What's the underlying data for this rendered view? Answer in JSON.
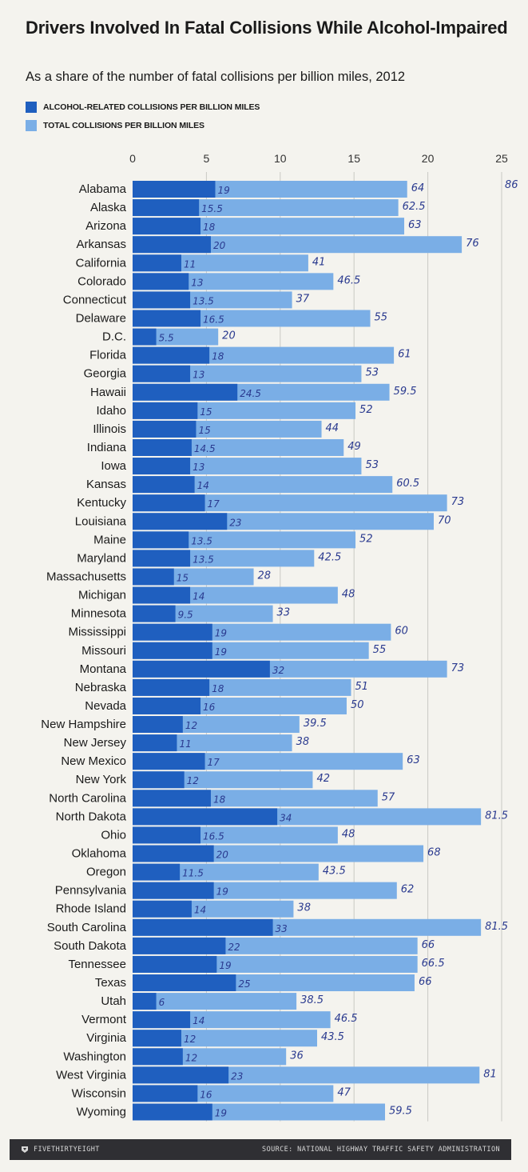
{
  "header": {
    "title": "Drivers Involved In Fatal Collisions While Alcohol-Impaired",
    "subtitle": "As a share of the number of fatal collisions per billion miles, 2012"
  },
  "legend": [
    {
      "label": "ALCOHOL-RELATED COLLISIONS PER BILLION MILES",
      "color": "#1f5fbf"
    },
    {
      "label": "TOTAL COLLISIONS PER BILLION MILES",
      "color": "#7aaee6"
    }
  ],
  "footer": {
    "brand": "FIVETHIRTYEIGHT",
    "source": "SOURCE: NATIONAL HIGHWAY TRAFFIC SAFETY ADMINISTRATION"
  },
  "chart_data": {
    "type": "bar",
    "orientation": "horizontal",
    "xlim": [
      0,
      25
    ],
    "xticks": [
      "0",
      "5",
      "10",
      "15",
      "20",
      "25"
    ],
    "grid": true,
    "categories": [
      "Alabama",
      "Alaska",
      "Arizona",
      "Arkansas",
      "California",
      "Colorado",
      "Connecticut",
      "Delaware",
      "D.C.",
      "Florida",
      "Georgia",
      "Hawaii",
      "Idaho",
      "Illinois",
      "Indiana",
      "Iowa",
      "Kansas",
      "Kentucky",
      "Louisiana",
      "Maine",
      "Maryland",
      "Massachusetts",
      "Michigan",
      "Minnesota",
      "Mississippi",
      "Missouri",
      "Montana",
      "Nebraska",
      "Nevada",
      "New Hampshire",
      "New Jersey",
      "New Mexico",
      "New York",
      "North Carolina",
      "North Dakota",
      "Ohio",
      "Oklahoma",
      "Oregon",
      "Pennsylvania",
      "Rhode Island",
      "South Carolina",
      "South Dakota",
      "Tennessee",
      "Texas",
      "Utah",
      "Vermont",
      "Virginia",
      "Washington",
      "West Virginia",
      "Wisconsin",
      "Wyoming"
    ],
    "series": [
      {
        "name": "ALCOHOL-RELATED COLLISIONS PER BILLION MILES",
        "color": "#1f5fbf",
        "values": [
          5.6,
          4.5,
          4.6,
          5.3,
          3.3,
          3.8,
          3.9,
          4.6,
          1.6,
          5.2,
          3.9,
          7.1,
          4.4,
          4.3,
          4.0,
          3.9,
          4.2,
          4.9,
          6.4,
          3.8,
          3.9,
          2.8,
          3.9,
          2.9,
          5.4,
          5.4,
          9.3,
          5.2,
          4.6,
          3.4,
          3.0,
          4.9,
          3.5,
          5.3,
          9.8,
          4.6,
          5.5,
          3.2,
          5.5,
          4.0,
          9.5,
          6.3,
          5.7,
          7.0,
          1.6,
          3.9,
          3.3,
          3.4,
          6.5,
          4.4,
          5.4
        ]
      },
      {
        "name": "TOTAL COLLISIONS PER BILLION MILES",
        "color": "#7aaee6",
        "values": [
          18.6,
          18.0,
          18.4,
          22.3,
          11.9,
          13.6,
          10.8,
          16.1,
          5.8,
          17.7,
          15.5,
          17.4,
          15.1,
          12.8,
          14.3,
          15.5,
          17.6,
          21.3,
          20.4,
          15.1,
          12.3,
          8.2,
          13.9,
          9.5,
          17.5,
          16.0,
          21.3,
          14.8,
          14.5,
          11.3,
          10.8,
          18.3,
          12.2,
          16.6,
          23.6,
          13.9,
          19.7,
          12.6,
          17.9,
          10.9,
          23.6,
          19.3,
          19.3,
          19.1,
          11.1,
          13.4,
          12.5,
          10.4,
          23.5,
          13.6,
          17.1
        ]
      }
    ],
    "annotations": {
      "alcohol": [
        "19",
        "15.5",
        "18",
        "20",
        "11",
        "13",
        "13.5",
        "16.5",
        "5.5",
        "18",
        "13",
        "24.5",
        "15",
        "15",
        "14.5",
        "13",
        "14",
        "17",
        "23",
        "13.5",
        "13.5",
        "15",
        "14",
        "9.5",
        "19",
        "19",
        "32",
        "18",
        "16",
        "12",
        "11",
        "17",
        "12",
        "18",
        "34",
        "16.5",
        "20",
        "11.5",
        "19",
        "14",
        "33",
        "22",
        "19",
        "25",
        "6",
        "14",
        "12",
        "12",
        "23",
        "16",
        "19"
      ],
      "total": [
        "64",
        "62.5",
        "63",
        "76",
        "41",
        "46.5",
        "37",
        "55",
        "20",
        "61",
        "53",
        "59.5",
        "52",
        "44",
        "49",
        "53",
        "60.5",
        "73",
        "70",
        "52",
        "42.5",
        "28",
        "48",
        "33",
        "60",
        "55",
        "73",
        "51",
        "50",
        "39.5",
        "38",
        "63",
        "42",
        "57",
        "81.5",
        "48",
        "68",
        "43.5",
        "62",
        "38",
        "81.5",
        "66",
        "66.5",
        "66",
        "38.5",
        "46.5",
        "43.5",
        "36",
        "81",
        "47",
        "59.5"
      ],
      "corner": "86"
    }
  }
}
